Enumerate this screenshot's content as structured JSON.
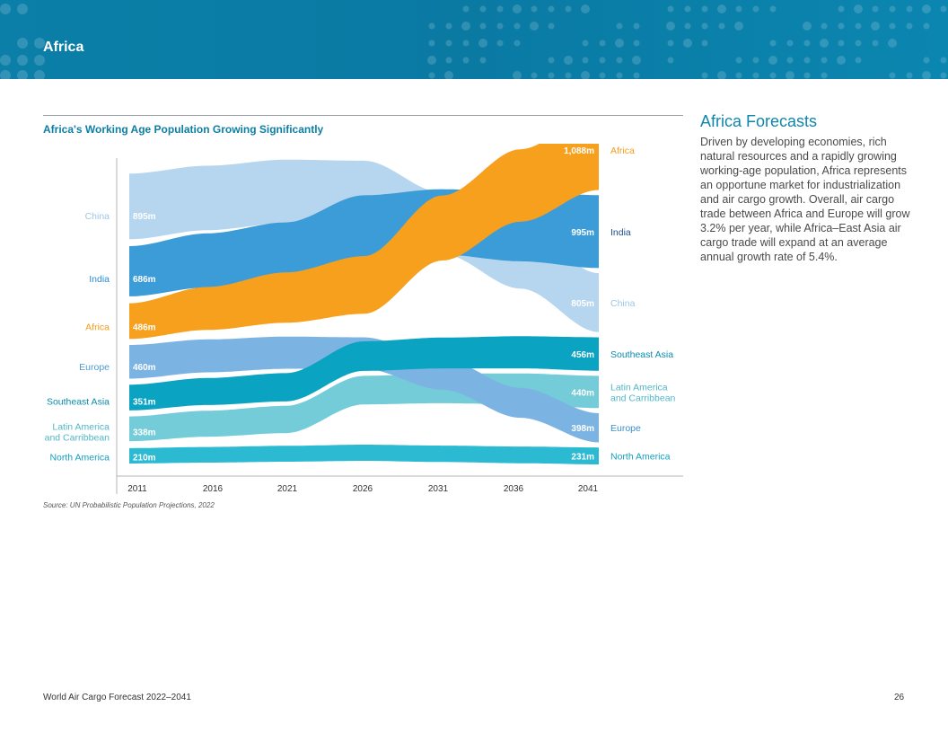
{
  "header": {
    "section_title": "Africa"
  },
  "side": {
    "title": "Africa Forecasts",
    "body": "Driven by developing economies, rich natural resources and a rapidly growing working-age population, Africa represents an opportune market for industrialization and air cargo growth. Overall, air cargo trade between Africa and Europe will grow 3.2% per year, while Africa–East Asia air cargo trade will expand at an average annual growth rate of 5.4%."
  },
  "footer": {
    "left": "World Air Cargo Forecast 2022–2041",
    "page_number": "26"
  },
  "chart_data": {
    "type": "area",
    "title": "Africa's Working Age Population Growing Significantly",
    "source": "Source: UN Probabilistic Population Projections, 2022",
    "x": [
      "2011",
      "2016",
      "2021",
      "2026",
      "2031",
      "2036",
      "2041"
    ],
    "start_order": [
      "China",
      "India",
      "Africa",
      "Europe",
      "Southeast Asia",
      "Latin America and Carribbean",
      "North America"
    ],
    "end_order": [
      "Africa",
      "India",
      "China",
      "Southeast Asia",
      "Latin America and Carribbean",
      "Europe",
      "North America"
    ],
    "series": [
      {
        "name": "China",
        "color": "#b6d6ef",
        "start_value": 895,
        "end_value": 805,
        "start_label": "895m",
        "end_label": "805m",
        "left_label": "China",
        "right_label": "China",
        "left_label_color": "#9ec7e6",
        "right_label_color": "#9ec7e6"
      },
      {
        "name": "India",
        "color": "#3c9cd8",
        "start_value": 686,
        "end_value": 995,
        "start_label": "686m",
        "end_label": "995m",
        "left_label": "India",
        "right_label": "India",
        "left_label_color": "#2b8bcd",
        "right_label_color": "#1d4f8a"
      },
      {
        "name": "Africa",
        "color": "#f7a01e",
        "start_value": 486,
        "end_value": 1088,
        "start_label": "486m",
        "end_label": "1,088m",
        "left_label": "Africa",
        "right_label": "Africa",
        "left_label_color": "#f49c1c",
        "right_label_color": "#f49c1c"
      },
      {
        "name": "Europe",
        "color": "#7bb4e3",
        "start_value": 460,
        "end_value": 398,
        "start_label": "460m",
        "end_label": "398m",
        "left_label": "Europe",
        "right_label": "Europe",
        "left_label_color": "#4d9bd4",
        "right_label_color": "#3b8fcf"
      },
      {
        "name": "Southeast Asia",
        "color": "#0ba3c2",
        "start_value": 351,
        "end_value": 456,
        "start_label": "351m",
        "end_label": "456m",
        "left_label": "Southeast Asia",
        "right_label": "Southeast Asia",
        "left_label_color": "#0a8cae",
        "right_label_color": "#0a8cae"
      },
      {
        "name": "Latin America and Carribbean",
        "color": "#74ccd9",
        "start_value": 338,
        "end_value": 440,
        "start_label": "338m",
        "end_label": "440m",
        "left_label": "Latin America and Carribbean",
        "right_label": "Latin America and Carribbean",
        "left_label_color": "#4fb8c9",
        "right_label_color": "#4fb8c9"
      },
      {
        "name": "North America",
        "color": "#2bbad2",
        "start_value": 210,
        "end_value": 231,
        "start_label": "210m",
        "end_label": "231m",
        "left_label": "North America",
        "right_label": "North America",
        "left_label_color": "#139fc0",
        "right_label_color": "#139fc0"
      }
    ]
  }
}
